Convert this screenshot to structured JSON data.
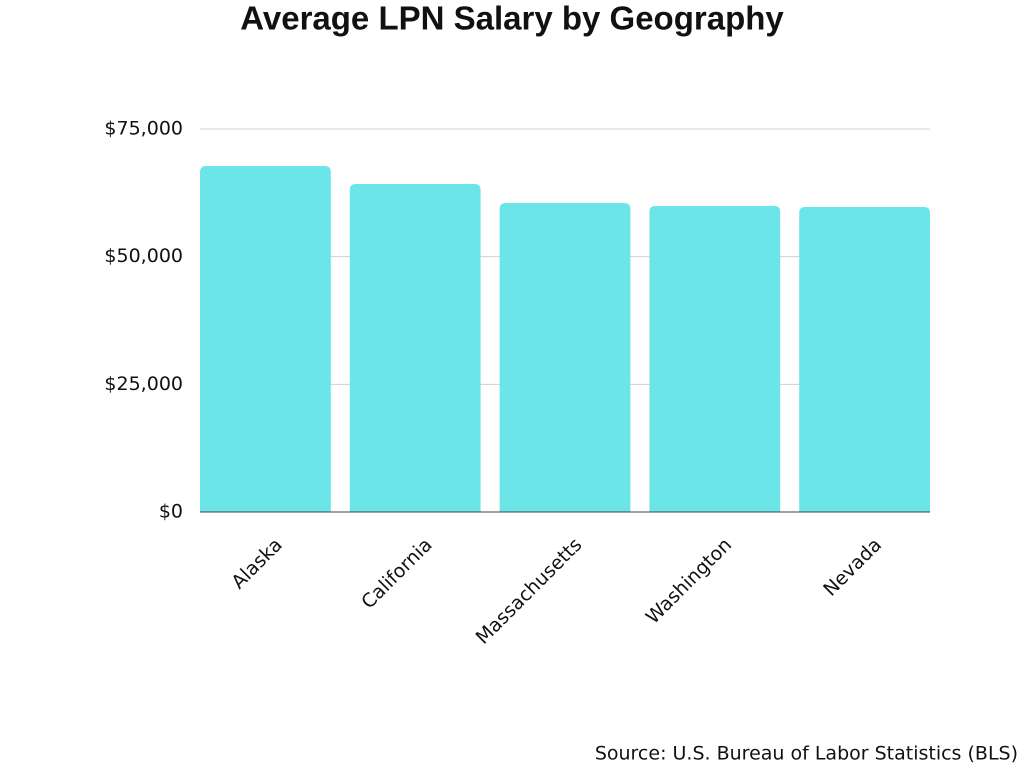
{
  "chart_data": {
    "type": "bar",
    "title": "Average LPN Salary by Geography",
    "categories": [
      "Alaska",
      "California",
      "Massachusetts",
      "Washington",
      "Nevada"
    ],
    "values": [
      67750,
      64220,
      60500,
      59920,
      59720
    ],
    "color": "#6ce5e8",
    "ylim": [
      0,
      75000
    ],
    "yticks": [
      {
        "value": 0,
        "label": "$0"
      },
      {
        "value": 25000,
        "label": "$25,000"
      },
      {
        "value": 50000,
        "label": "$50,000"
      },
      {
        "value": 75000,
        "label": "$75,000"
      }
    ],
    "grid": true,
    "source": "Source: U.S. Bureau of Labor Statistics (BLS)"
  }
}
